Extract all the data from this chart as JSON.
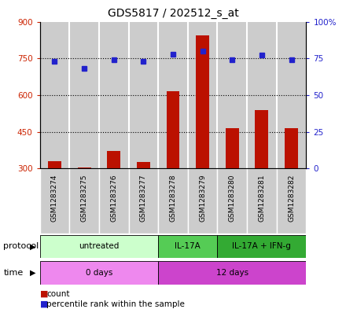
{
  "title": "GDS5817 / 202512_s_at",
  "samples": [
    "GSM1283274",
    "GSM1283275",
    "GSM1283276",
    "GSM1283277",
    "GSM1283278",
    "GSM1283279",
    "GSM1283280",
    "GSM1283281",
    "GSM1283282"
  ],
  "counts": [
    330,
    305,
    370,
    325,
    615,
    845,
    465,
    540,
    465
  ],
  "percentiles": [
    73,
    68,
    74,
    73,
    78,
    80,
    74,
    77,
    74
  ],
  "ylim_left": [
    300,
    900
  ],
  "ylim_right": [
    0,
    100
  ],
  "yticks_left": [
    300,
    450,
    600,
    750,
    900
  ],
  "yticks_right": [
    0,
    25,
    50,
    75,
    100
  ],
  "bar_color": "#bb1100",
  "dot_color": "#2222cc",
  "bar_bottom": 300,
  "protocol_groups": [
    {
      "label": "untreated",
      "start": 0,
      "end": 4,
      "color": "#ccffcc"
    },
    {
      "label": "IL-17A",
      "start": 4,
      "end": 6,
      "color": "#55cc55"
    },
    {
      "label": "IL-17A + IFN-g",
      "start": 6,
      "end": 9,
      "color": "#33aa33"
    }
  ],
  "time_groups": [
    {
      "label": "0 days",
      "start": 0,
      "end": 4,
      "color": "#ee88ee"
    },
    {
      "label": "12 days",
      "start": 4,
      "end": 9,
      "color": "#cc44cc"
    }
  ],
  "sample_bg_color": "#cccccc",
  "plot_bg_color": "#ffffff",
  "grid_color": "black",
  "title_fontsize": 10,
  "axis_label_color_left": "#cc2200",
  "axis_label_color_right": "#2222cc",
  "legend_count_label": "count",
  "legend_percentile_label": "percentile rank within the sample",
  "protocol_label": "protocol",
  "time_label": "time"
}
